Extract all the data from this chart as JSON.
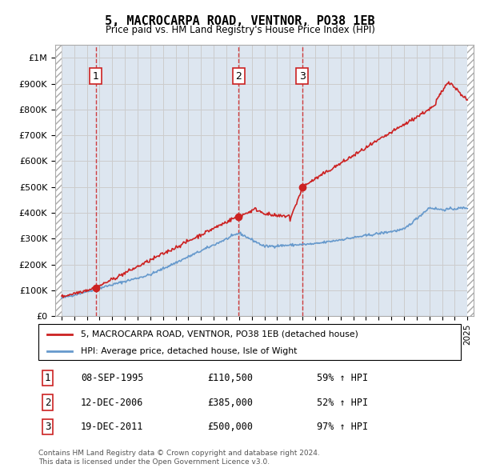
{
  "title": "5, MACROCARPA ROAD, VENTNOR, PO38 1EB",
  "subtitle": "Price paid vs. HM Land Registry's House Price Index (HPI)",
  "legend_line1": "5, MACROCARPA ROAD, VENTNOR, PO38 1EB (detached house)",
  "legend_line2": "HPI: Average price, detached house, Isle of Wight",
  "footer1": "Contains HM Land Registry data © Crown copyright and database right 2024.",
  "footer2": "This data is licensed under the Open Government Licence v3.0.",
  "transactions": [
    {
      "num": 1,
      "date": "08-SEP-1995",
      "price": 110500,
      "hpi_pct": "59% ↑ HPI",
      "year": 1995.69
    },
    {
      "num": 2,
      "date": "12-DEC-2006",
      "price": 385000,
      "hpi_pct": "52% ↑ HPI",
      "year": 2006.95
    },
    {
      "num": 3,
      "date": "19-DEC-2011",
      "price": 500000,
      "hpi_pct": "97% ↑ HPI",
      "year": 2011.96
    }
  ],
  "hpi_color": "#6699cc",
  "price_color": "#cc2222",
  "marker_color": "#cc2222",
  "vline_color": "#cc2222",
  "ylim": [
    0,
    1050000
  ],
  "yticks": [
    0,
    100000,
    200000,
    300000,
    400000,
    500000,
    600000,
    700000,
    800000,
    900000,
    1000000
  ],
  "ylabel_texts": [
    "£0",
    "£100K",
    "£200K",
    "£300K",
    "£400K",
    "£500K",
    "£600K",
    "£700K",
    "£800K",
    "£900K",
    "£1M"
  ],
  "xlim_start": 1992.5,
  "xlim_end": 2025.5,
  "xticks": [
    1993,
    1994,
    1995,
    1996,
    1997,
    1998,
    1999,
    2000,
    2001,
    2002,
    2003,
    2004,
    2005,
    2006,
    2007,
    2008,
    2009,
    2010,
    2011,
    2012,
    2013,
    2014,
    2015,
    2016,
    2017,
    2018,
    2019,
    2020,
    2021,
    2022,
    2023,
    2024,
    2025
  ],
  "grid_color": "#cccccc",
  "bg_color": "#dde6f0"
}
